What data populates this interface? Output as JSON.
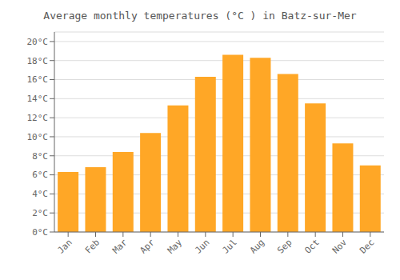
{
  "chart_data": {
    "type": "bar",
    "title": "Average monthly temperatures (°C ) in Batz-sur-Mer",
    "categories": [
      "Jan",
      "Feb",
      "Mar",
      "Apr",
      "May",
      "Jun",
      "Jul",
      "Aug",
      "Sep",
      "Oct",
      "Nov",
      "Dec"
    ],
    "values": [
      6.3,
      6.8,
      8.4,
      10.4,
      13.3,
      16.3,
      18.6,
      18.3,
      16.6,
      13.5,
      9.3,
      7.0
    ],
    "color": "#FFA726",
    "ylim": [
      0,
      21
    ],
    "yticks": [
      {
        "value": 0,
        "label": "0°C"
      },
      {
        "value": 2,
        "label": "2°C"
      },
      {
        "value": 4,
        "label": "4°C"
      },
      {
        "value": 6,
        "label": "6°C"
      },
      {
        "value": 8,
        "label": "8°C"
      },
      {
        "value": 10,
        "label": "10°C"
      },
      {
        "value": 12,
        "label": "12°C"
      },
      {
        "value": 14,
        "label": "14°C"
      },
      {
        "value": 16,
        "label": "16°C"
      },
      {
        "value": 18,
        "label": "18°C"
      },
      {
        "value": 20,
        "label": "20°C"
      }
    ],
    "grid": true
  }
}
